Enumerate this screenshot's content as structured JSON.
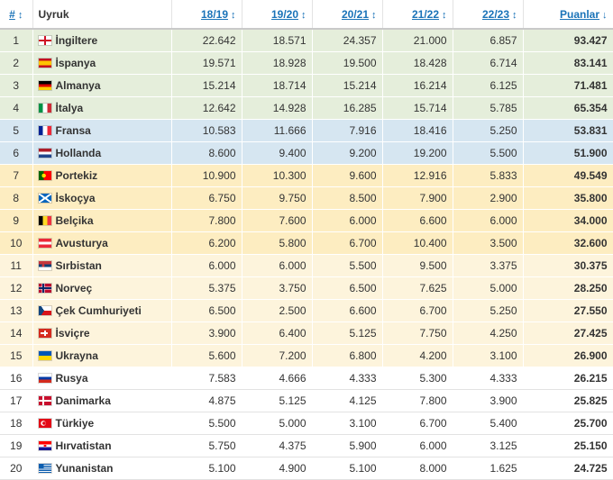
{
  "header": {
    "rank": "#",
    "country": "Uyruk",
    "seasons": [
      "18/19",
      "19/20",
      "20/21",
      "21/22",
      "22/23"
    ],
    "points": "Puanlar",
    "sort_icon": "↕",
    "sort_desc_icon": "↓"
  },
  "rows": [
    {
      "rank": "1",
      "flag": "england",
      "country": "İngiltere",
      "s": [
        "22.642",
        "18.571",
        "24.357",
        "21.000",
        "6.857"
      ],
      "points": "93.427",
      "tier": "green"
    },
    {
      "rank": "2",
      "flag": "spain",
      "country": "İspanya",
      "s": [
        "19.571",
        "18.928",
        "19.500",
        "18.428",
        "6.714"
      ],
      "points": "83.141",
      "tier": "green"
    },
    {
      "rank": "3",
      "flag": "germany",
      "country": "Almanya",
      "s": [
        "15.214",
        "18.714",
        "15.214",
        "16.214",
        "6.125"
      ],
      "points": "71.481",
      "tier": "green"
    },
    {
      "rank": "4",
      "flag": "italy",
      "country": "İtalya",
      "s": [
        "12.642",
        "14.928",
        "16.285",
        "15.714",
        "5.785"
      ],
      "points": "65.354",
      "tier": "green"
    },
    {
      "rank": "5",
      "flag": "france",
      "country": "Fransa",
      "s": [
        "10.583",
        "11.666",
        "7.916",
        "18.416",
        "5.250"
      ],
      "points": "53.831",
      "tier": "blue"
    },
    {
      "rank": "6",
      "flag": "netherlands",
      "country": "Hollanda",
      "s": [
        "8.600",
        "9.400",
        "9.200",
        "19.200",
        "5.500"
      ],
      "points": "51.900",
      "tier": "blue"
    },
    {
      "rank": "7",
      "flag": "portugal",
      "country": "Portekiz",
      "s": [
        "10.900",
        "10.300",
        "9.600",
        "12.916",
        "5.833"
      ],
      "points": "49.549",
      "tier": "gold"
    },
    {
      "rank": "8",
      "flag": "scotland",
      "country": "İskoçya",
      "s": [
        "6.750",
        "9.750",
        "8.500",
        "7.900",
        "2.900"
      ],
      "points": "35.800",
      "tier": "gold"
    },
    {
      "rank": "9",
      "flag": "belgium",
      "country": "Belçika",
      "s": [
        "7.800",
        "7.600",
        "6.000",
        "6.600",
        "6.000"
      ],
      "points": "34.000",
      "tier": "gold"
    },
    {
      "rank": "10",
      "flag": "austria",
      "country": "Avusturya",
      "s": [
        "6.200",
        "5.800",
        "6.700",
        "10.400",
        "3.500"
      ],
      "points": "32.600",
      "tier": "gold"
    },
    {
      "rank": "11",
      "flag": "serbia",
      "country": "Sırbistan",
      "s": [
        "6.000",
        "6.000",
        "5.500",
        "9.500",
        "3.375"
      ],
      "points": "30.375",
      "tier": "cream"
    },
    {
      "rank": "12",
      "flag": "norway",
      "country": "Norveç",
      "s": [
        "5.375",
        "3.750",
        "6.500",
        "7.625",
        "5.000"
      ],
      "points": "28.250",
      "tier": "cream"
    },
    {
      "rank": "13",
      "flag": "czech",
      "country": "Çek Cumhuriyeti",
      "s": [
        "6.500",
        "2.500",
        "6.600",
        "6.700",
        "5.250"
      ],
      "points": "27.550",
      "tier": "cream"
    },
    {
      "rank": "14",
      "flag": "switzerland",
      "country": "İsviçre",
      "s": [
        "3.900",
        "6.400",
        "5.125",
        "7.750",
        "4.250"
      ],
      "points": "27.425",
      "tier": "cream"
    },
    {
      "rank": "15",
      "flag": "ukraine",
      "country": "Ukrayna",
      "s": [
        "5.600",
        "7.200",
        "6.800",
        "4.200",
        "3.100"
      ],
      "points": "26.900",
      "tier": "cream"
    },
    {
      "rank": "16",
      "flag": "russia",
      "country": "Rusya",
      "s": [
        "7.583",
        "4.666",
        "4.333",
        "5.300",
        "4.333"
      ],
      "points": "26.215",
      "tier": "white"
    },
    {
      "rank": "17",
      "flag": "denmark",
      "country": "Danimarka",
      "s": [
        "4.875",
        "5.125",
        "4.125",
        "7.800",
        "3.900"
      ],
      "points": "25.825",
      "tier": "white"
    },
    {
      "rank": "18",
      "flag": "turkey",
      "country": "Türkiye",
      "s": [
        "5.500",
        "5.000",
        "3.100",
        "6.700",
        "5.400"
      ],
      "points": "25.700",
      "tier": "white"
    },
    {
      "rank": "19",
      "flag": "croatia",
      "country": "Hırvatistan",
      "s": [
        "5.750",
        "4.375",
        "5.900",
        "6.000",
        "3.125"
      ],
      "points": "25.150",
      "tier": "white"
    },
    {
      "rank": "20",
      "flag": "greece",
      "country": "Yunanistan",
      "s": [
        "5.100",
        "4.900",
        "5.100",
        "8.000",
        "1.625"
      ],
      "points": "24.725",
      "tier": "white"
    }
  ]
}
